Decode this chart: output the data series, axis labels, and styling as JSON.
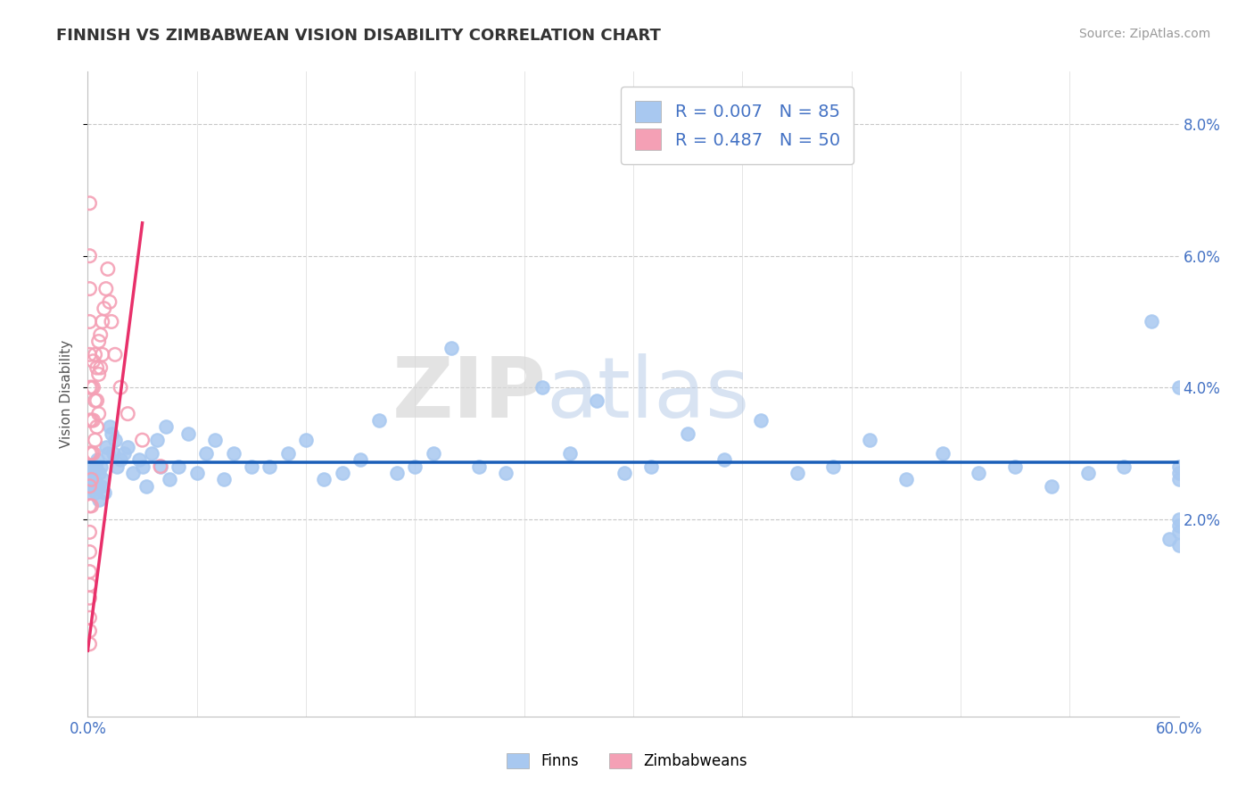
{
  "title": "FINNISH VS ZIMBABWEAN VISION DISABILITY CORRELATION CHART",
  "source": "Source: ZipAtlas.com",
  "ylabel": "Vision Disability",
  "legend_r_finns": "R = 0.007",
  "legend_n_finns": "N = 85",
  "legend_r_zimb": "R = 0.487",
  "legend_n_zimb": "N = 50",
  "finns_color": "#a8c8f0",
  "zimb_color": "#f4a0b5",
  "trend_finns_color": "#1a5eb8",
  "trend_zimb_color": "#e8306a",
  "background_color": "#ffffff",
  "watermark_zip": "ZIP",
  "watermark_atlas": "atlas",
  "xlim": [
    0.0,
    0.6
  ],
  "ylim": [
    -0.01,
    0.088
  ],
  "yticks": [
    0.02,
    0.04,
    0.06,
    0.08
  ],
  "ytick_labels": [
    "2.0%",
    "4.0%",
    "6.0%",
    "8.0%"
  ],
  "xticks": [
    0.0,
    0.06,
    0.12,
    0.18,
    0.24,
    0.3,
    0.36,
    0.42,
    0.48,
    0.54,
    0.6
  ],
  "finns_x": [
    0.001,
    0.001,
    0.001,
    0.002,
    0.002,
    0.003,
    0.003,
    0.004,
    0.004,
    0.005,
    0.005,
    0.006,
    0.006,
    0.007,
    0.007,
    0.008,
    0.009,
    0.01,
    0.011,
    0.012,
    0.013,
    0.014,
    0.015,
    0.016,
    0.018,
    0.02,
    0.022,
    0.025,
    0.028,
    0.03,
    0.032,
    0.035,
    0.038,
    0.04,
    0.043,
    0.045,
    0.05,
    0.055,
    0.06,
    0.065,
    0.07,
    0.075,
    0.08,
    0.09,
    0.1,
    0.11,
    0.12,
    0.13,
    0.14,
    0.15,
    0.16,
    0.17,
    0.18,
    0.19,
    0.2,
    0.215,
    0.23,
    0.25,
    0.265,
    0.28,
    0.295,
    0.31,
    0.33,
    0.35,
    0.37,
    0.39,
    0.41,
    0.43,
    0.45,
    0.47,
    0.49,
    0.51,
    0.53,
    0.55,
    0.57,
    0.585,
    0.595,
    0.6,
    0.6,
    0.6,
    0.6,
    0.6,
    0.6,
    0.6,
    0.6
  ],
  "finns_y": [
    0.024,
    0.028,
    0.026,
    0.025,
    0.027,
    0.026,
    0.025,
    0.028,
    0.024,
    0.029,
    0.025,
    0.027,
    0.023,
    0.028,
    0.025,
    0.026,
    0.024,
    0.031,
    0.03,
    0.034,
    0.033,
    0.03,
    0.032,
    0.028,
    0.029,
    0.03,
    0.031,
    0.027,
    0.029,
    0.028,
    0.025,
    0.03,
    0.032,
    0.028,
    0.034,
    0.026,
    0.028,
    0.033,
    0.027,
    0.03,
    0.032,
    0.026,
    0.03,
    0.028,
    0.028,
    0.03,
    0.032,
    0.026,
    0.027,
    0.029,
    0.035,
    0.027,
    0.028,
    0.03,
    0.046,
    0.028,
    0.027,
    0.04,
    0.03,
    0.038,
    0.027,
    0.028,
    0.033,
    0.029,
    0.035,
    0.027,
    0.028,
    0.032,
    0.026,
    0.03,
    0.027,
    0.028,
    0.025,
    0.027,
    0.028,
    0.05,
    0.017,
    0.04,
    0.02,
    0.026,
    0.027,
    0.019,
    0.028,
    0.016,
    0.018
  ],
  "zimb_x": [
    0.001,
    0.001,
    0.001,
    0.001,
    0.001,
    0.001,
    0.001,
    0.001,
    0.001,
    0.001,
    0.001,
    0.001,
    0.001,
    0.001,
    0.001,
    0.001,
    0.001,
    0.001,
    0.002,
    0.002,
    0.002,
    0.002,
    0.002,
    0.003,
    0.003,
    0.003,
    0.003,
    0.004,
    0.004,
    0.004,
    0.005,
    0.005,
    0.005,
    0.006,
    0.006,
    0.006,
    0.007,
    0.007,
    0.008,
    0.008,
    0.009,
    0.01,
    0.011,
    0.012,
    0.013,
    0.015,
    0.018,
    0.022,
    0.03,
    0.04
  ],
  "zimb_y": [
    0.068,
    0.06,
    0.055,
    0.05,
    0.045,
    0.04,
    0.035,
    0.03,
    0.025,
    0.022,
    0.018,
    0.015,
    0.012,
    0.01,
    0.008,
    0.005,
    0.003,
    0.001,
    0.04,
    0.035,
    0.03,
    0.026,
    0.022,
    0.044,
    0.04,
    0.035,
    0.03,
    0.045,
    0.038,
    0.032,
    0.043,
    0.038,
    0.034,
    0.047,
    0.042,
    0.036,
    0.048,
    0.043,
    0.05,
    0.045,
    0.052,
    0.055,
    0.058,
    0.053,
    0.05,
    0.045,
    0.04,
    0.036,
    0.032,
    0.028
  ]
}
